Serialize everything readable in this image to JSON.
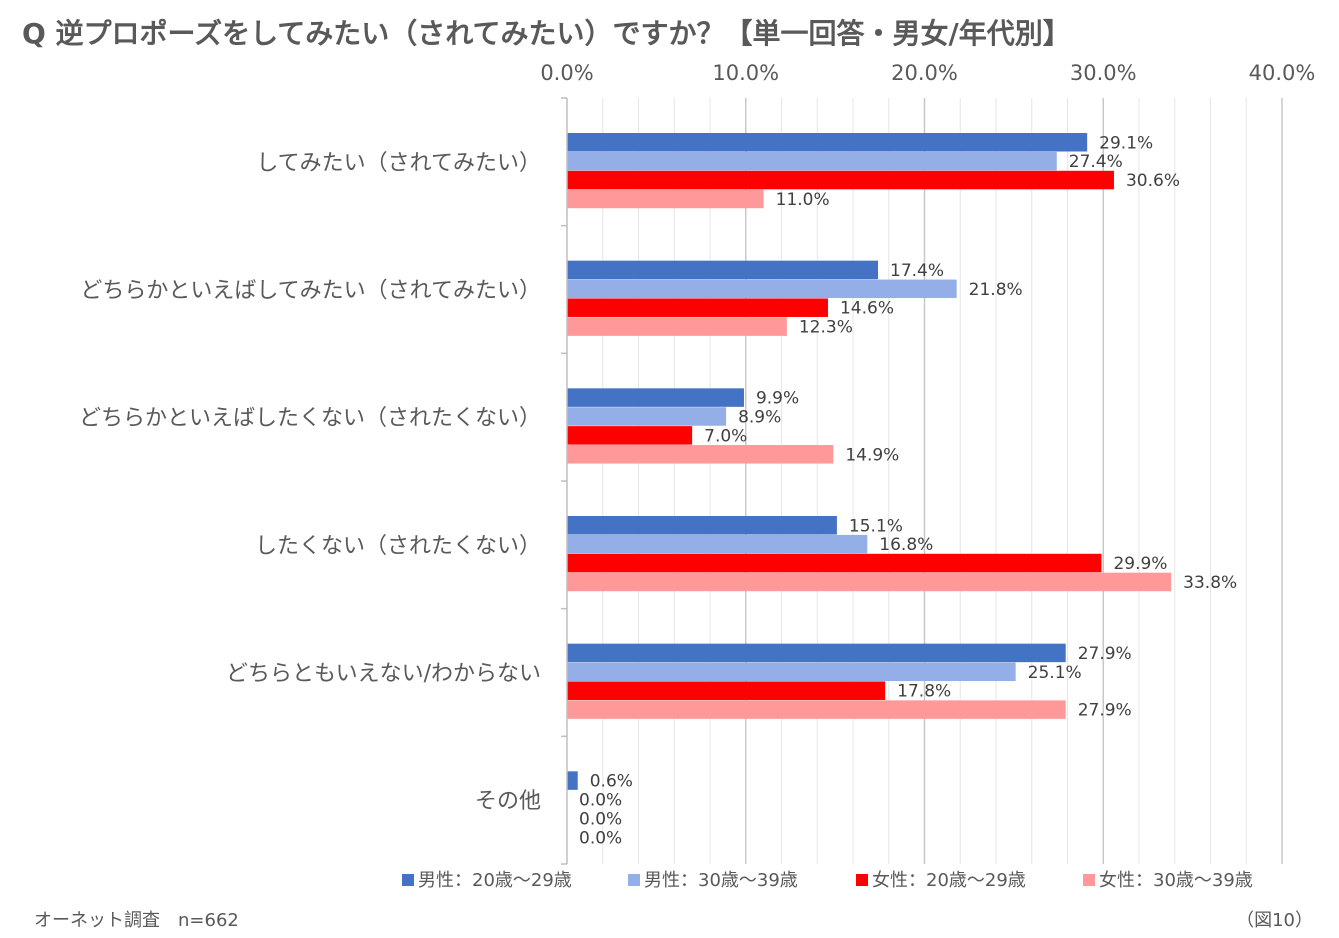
{
  "title": "Q 逆プロポーズをしてみたい（されてみたい）ですか？【単一回答・男女/年代別】",
  "footer_left": "オーネット調査　n=662",
  "footer_right": "（図10）",
  "chart_data": {
    "type": "bar",
    "orientation": "horizontal",
    "categories": [
      "してみたい（されてみたい）",
      "どちらかといえばしてみたい（されてみたい）",
      "どちらかといえばしたくない（されたくない）",
      "したくない（されたくない）",
      "どちらともいえない/わからない",
      "その他"
    ],
    "series": [
      {
        "name": "男性：20歳～29歳",
        "color": "#4472c4",
        "values": [
          29.1,
          17.4,
          9.9,
          15.1,
          27.9,
          0.6
        ]
      },
      {
        "name": "男性：30歳～39歳",
        "color": "#94aee8",
        "values": [
          27.4,
          21.8,
          8.9,
          16.8,
          25.1,
          0.0
        ]
      },
      {
        "name": "女性：20歳～29歳",
        "color": "#ff0000",
        "values": [
          30.6,
          14.6,
          7.0,
          29.9,
          17.8,
          0.0
        ]
      },
      {
        "name": "女性：30歳～39歳",
        "color": "#ff9999",
        "values": [
          11.0,
          12.3,
          14.9,
          33.8,
          27.9,
          0.0
        ]
      }
    ],
    "xlim": [
      0,
      40
    ],
    "ticks": [
      "0.0%",
      "10.0%",
      "20.0%",
      "30.0%",
      "40.0%"
    ],
    "tick_values": [
      0,
      10,
      20,
      30,
      40
    ],
    "value_suffix": "%",
    "grid": true,
    "legend": "bottom"
  }
}
